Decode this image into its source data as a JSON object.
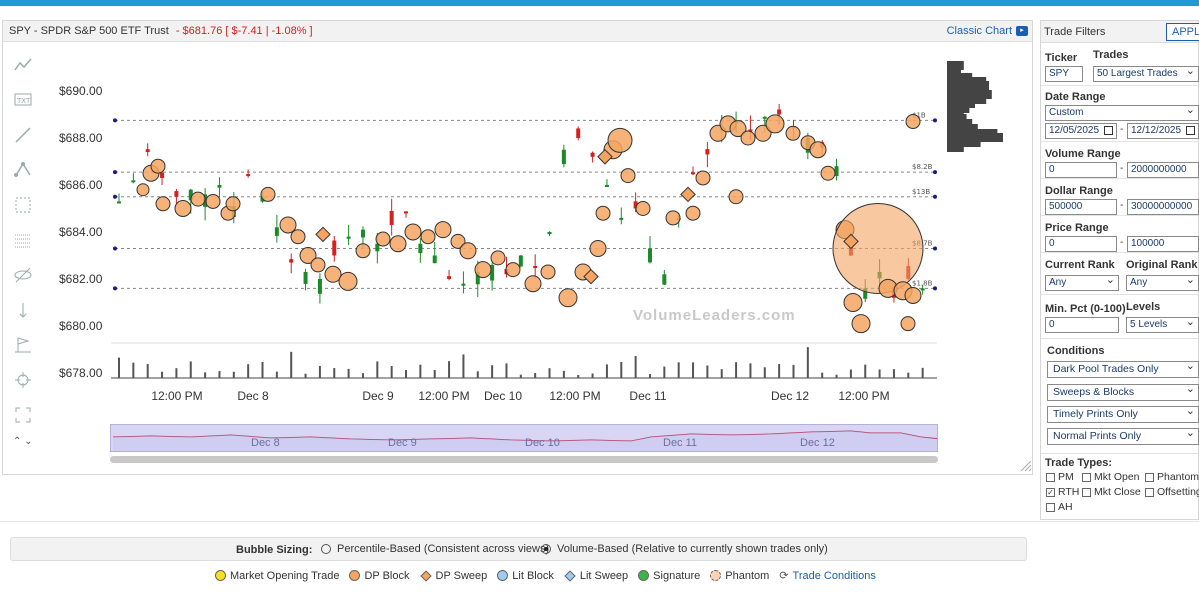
{
  "chart": {
    "ticker_title": "SPY - SPDR S&P 500 ETF Trust",
    "price": "- $681.76",
    "change": "[ $-7.41 | -1.08% ]",
    "classic_chart_label": "Classic Chart",
    "y_axis_labels": [
      "$690.00",
      "$688.00",
      "$686.00",
      "$684.00",
      "$682.00",
      "$680.00",
      "$678.00"
    ],
    "x_axis_labels": [
      "12:00 PM",
      "Dec 8",
      "Dec 9",
      "12:00 PM",
      "Dec 10",
      "12:00 PM",
      "Dec 11",
      "Dec 12",
      "12:00 PM"
    ],
    "level_labels": [
      "$1B",
      "$8.2B",
      "$13B",
      "$8.7B",
      "$1.8B"
    ],
    "navigator_labels": [
      "Dec 8",
      "Dec 9",
      "Dec 10",
      "Dec 11",
      "Dec 12"
    ],
    "watermark": "VolumeLeaders.com",
    "tool_icons": [
      "trend-line-icon",
      "text-tool-icon",
      "line-tool-icon",
      "fibonacci-icon",
      "measure-icon",
      "grid-icon",
      "hide-icon",
      "vertical-line-icon",
      "flag-icon",
      "crosshair-icon",
      "fullscreen-icon"
    ]
  },
  "filters": {
    "title": "Trade Filters",
    "apply_label": "APPLY",
    "ticker_label": "Ticker",
    "ticker_value": "SPY",
    "trades_label": "Trades",
    "trades_value": "50 Largest Trades",
    "date_range_label": "Date Range",
    "date_range_value": "Custom",
    "date_from": "12/05/2025",
    "date_to": "12/12/2025",
    "volume_range_label": "Volume Range",
    "volume_min": "0",
    "volume_max": "2000000000",
    "dollar_range_label": "Dollar Range",
    "dollar_min": "500000",
    "dollar_max": "30000000000",
    "price_range_label": "Price Range",
    "price_min": "0",
    "price_max": "100000",
    "current_rank_label": "Current Rank",
    "current_rank_value": "Any",
    "original_rank_label": "Original Rank",
    "original_rank_value": "Any",
    "min_pct_label": "Min. Pct (0-100)",
    "min_pct_value": "0",
    "levels_label": "Levels",
    "levels_value": "5 Levels",
    "conditions_label": "Conditions",
    "conditions": [
      "Dark Pool Trades Only",
      "Sweeps & Blocks",
      "Timely Prints Only",
      "Normal Prints Only"
    ],
    "trade_types_label": "Trade Types:",
    "trade_types": [
      {
        "label": "PM",
        "checked": false
      },
      {
        "label": "Mkt Open",
        "checked": false
      },
      {
        "label": "Phantoms",
        "checked": false
      },
      {
        "label": "RTH",
        "checked": true
      },
      {
        "label": "Mkt Close",
        "checked": false
      },
      {
        "label": "Offsetting",
        "checked": false
      },
      {
        "label": "AH",
        "checked": false
      }
    ]
  },
  "bubble_sizing": {
    "label": "Bubble Sizing:",
    "option1": "Percentile-Based (Consistent across views)",
    "option2": "Volume-Based (Relative to currently shown trades only)",
    "selected": "option2"
  },
  "legend": [
    {
      "label": "Market Opening Trade",
      "shape": "circle",
      "color": "#f7e01c"
    },
    {
      "label": "DP Block",
      "shape": "circle",
      "color": "#f4a460"
    },
    {
      "label": "DP Sweep",
      "shape": "diamond",
      "color": "#f4a460"
    },
    {
      "label": "Lit Block",
      "shape": "circle",
      "color": "#9ecbf0"
    },
    {
      "label": "Lit Sweep",
      "shape": "diamond",
      "color": "#9ecbf0"
    },
    {
      "label": "Signature",
      "shape": "circle",
      "color": "#3cb44b"
    },
    {
      "label": "Phantom",
      "shape": "phantom",
      "color": "#f4a460"
    },
    {
      "label": "Trade Conditions",
      "shape": "link",
      "color": "#1a5fb4"
    }
  ],
  "colors": {
    "up": "#1a8a2a",
    "down": "#d42020",
    "bubble": "#f4a460",
    "accent": "#1e9bd7",
    "navigator": "#d9d6f5"
  }
}
